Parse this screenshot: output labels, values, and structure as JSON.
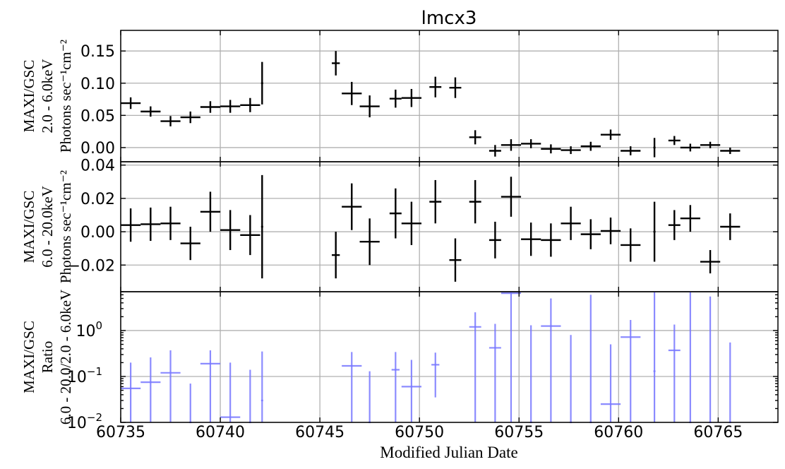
{
  "chart_data": {
    "title": "lmcx3",
    "xlabel": "Modified Julian Date",
    "xlim": [
      60735,
      60768
    ],
    "xticks": [
      60735,
      60740,
      60745,
      60750,
      60755,
      60760,
      60765
    ],
    "panels": [
      {
        "type": "scatter",
        "id": "soft",
        "ylabel_lines": [
          "MAXI/GSC",
          "2.0 - 6.0keV",
          "Photons sec⁻¹cm⁻²"
        ],
        "ylim": [
          -0.022,
          0.182
        ],
        "yscale": "linear",
        "yticks": [
          0.0,
          0.05,
          0.1,
          0.15
        ],
        "ytick_labels": [
          "0.00",
          "0.05",
          "0.10",
          "0.15"
        ],
        "color": "#000000",
        "points": [
          {
            "x": 60735.5,
            "y": 0.069,
            "yerr": 0.009
          },
          {
            "x": 60736.5,
            "y": 0.056,
            "yerr": 0.008
          },
          {
            "x": 60737.5,
            "y": 0.041,
            "yerr": 0.008
          },
          {
            "x": 60738.5,
            "y": 0.047,
            "yerr": 0.009
          },
          {
            "x": 60739.5,
            "y": 0.063,
            "yerr": 0.009
          },
          {
            "x": 60740.5,
            "y": 0.064,
            "yerr": 0.01
          },
          {
            "x": 60741.5,
            "y": 0.066,
            "yerr": 0.011
          },
          {
            "x": 60742.1,
            "y": 0.1,
            "yerr": 0.033,
            "xerr": 0.0
          },
          {
            "x": 60745.8,
            "y": 0.131,
            "yerr": 0.019,
            "xerr": 0.2
          },
          {
            "x": 60746.6,
            "y": 0.084,
            "yerr": 0.018
          },
          {
            "x": 60747.5,
            "y": 0.064,
            "yerr": 0.017
          },
          {
            "x": 60748.8,
            "y": 0.076,
            "yerr": 0.014,
            "xerr": 0.3
          },
          {
            "x": 60749.6,
            "y": 0.077,
            "yerr": 0.014
          },
          {
            "x": 60750.8,
            "y": 0.094,
            "yerr": 0.016,
            "xerr": 0.3
          },
          {
            "x": 60751.8,
            "y": 0.093,
            "yerr": 0.016,
            "xerr": 0.3
          },
          {
            "x": 60752.8,
            "y": 0.016,
            "yerr": 0.011,
            "xerr": 0.3
          },
          {
            "x": 60753.8,
            "y": -0.005,
            "yerr": 0.009,
            "xerr": 0.3
          },
          {
            "x": 60754.6,
            "y": 0.004,
            "yerr": 0.009
          },
          {
            "x": 60755.6,
            "y": 0.006,
            "yerr": 0.007
          },
          {
            "x": 60756.6,
            "y": -0.002,
            "yerr": 0.007
          },
          {
            "x": 60757.6,
            "y": -0.004,
            "yerr": 0.006
          },
          {
            "x": 60758.6,
            "y": 0.002,
            "yerr": 0.007
          },
          {
            "x": 60759.6,
            "y": 0.02,
            "yerr": 0.008
          },
          {
            "x": 60760.6,
            "y": -0.005,
            "yerr": 0.007
          },
          {
            "x": 60761.8,
            "y": 0.0,
            "yerr": 0.015,
            "xerr": 0.0
          },
          {
            "x": 60762.8,
            "y": 0.011,
            "yerr": 0.007,
            "xerr": 0.3
          },
          {
            "x": 60763.6,
            "y": 0.0,
            "yerr": 0.006
          },
          {
            "x": 60764.6,
            "y": 0.004,
            "yerr": 0.005
          },
          {
            "x": 60765.6,
            "y": -0.005,
            "yerr": 0.005
          }
        ]
      },
      {
        "type": "scatter",
        "id": "hard",
        "ylabel_lines": [
          "MAXI/GSC",
          "6.0 - 20.0keV",
          "Photons sec⁻¹cm⁻²"
        ],
        "ylim": [
          -0.036,
          0.042
        ],
        "yscale": "linear",
        "yticks": [
          -0.02,
          0.0,
          0.02,
          0.04
        ],
        "ytick_labels": [
          "−0.02",
          "0.00",
          "0.02",
          "0.04"
        ],
        "color": "#000000",
        "points": [
          {
            "x": 60735.5,
            "y": 0.004,
            "yerr": 0.01
          },
          {
            "x": 60736.5,
            "y": 0.0045,
            "yerr": 0.01
          },
          {
            "x": 60737.5,
            "y": 0.005,
            "yerr": 0.01
          },
          {
            "x": 60738.5,
            "y": -0.007,
            "yerr": 0.01
          },
          {
            "x": 60739.5,
            "y": 0.012,
            "yerr": 0.012
          },
          {
            "x": 60740.5,
            "y": 0.001,
            "yerr": 0.012
          },
          {
            "x": 60741.5,
            "y": -0.002,
            "yerr": 0.012
          },
          {
            "x": 60742.1,
            "y": 0.003,
            "yerr": 0.031,
            "xerr": 0.0
          },
          {
            "x": 60745.8,
            "y": -0.014,
            "yerr": 0.014,
            "xerr": 0.2
          },
          {
            "x": 60746.6,
            "y": 0.015,
            "yerr": 0.014
          },
          {
            "x": 60747.5,
            "y": -0.006,
            "yerr": 0.014
          },
          {
            "x": 60748.8,
            "y": 0.011,
            "yerr": 0.015,
            "xerr": 0.3
          },
          {
            "x": 60749.6,
            "y": 0.005,
            "yerr": 0.013
          },
          {
            "x": 60750.8,
            "y": 0.018,
            "yerr": 0.013,
            "xerr": 0.3
          },
          {
            "x": 60751.8,
            "y": -0.017,
            "yerr": 0.013,
            "xerr": 0.3
          },
          {
            "x": 60752.8,
            "y": 0.018,
            "yerr": 0.013,
            "xerr": 0.3
          },
          {
            "x": 60753.8,
            "y": -0.005,
            "yerr": 0.011,
            "xerr": 0.3
          },
          {
            "x": 60754.6,
            "y": 0.021,
            "yerr": 0.012
          },
          {
            "x": 60755.6,
            "y": -0.0045,
            "yerr": 0.01
          },
          {
            "x": 60756.6,
            "y": -0.005,
            "yerr": 0.01
          },
          {
            "x": 60757.6,
            "y": 0.005,
            "yerr": 0.01
          },
          {
            "x": 60758.6,
            "y": -0.0015,
            "yerr": 0.009
          },
          {
            "x": 60759.6,
            "y": 0.0005,
            "yerr": 0.008
          },
          {
            "x": 60760.6,
            "y": -0.008,
            "yerr": 0.01
          },
          {
            "x": 60761.8,
            "y": 0.0,
            "yerr": 0.018,
            "xerr": 0.0
          },
          {
            "x": 60762.8,
            "y": 0.004,
            "yerr": 0.009,
            "xerr": 0.3
          },
          {
            "x": 60763.6,
            "y": 0.008,
            "yerr": 0.008
          },
          {
            "x": 60764.6,
            "y": -0.018,
            "yerr": 0.007
          },
          {
            "x": 60765.6,
            "y": 0.003,
            "yerr": 0.008
          }
        ]
      },
      {
        "type": "scatter",
        "id": "ratio",
        "ylabel_lines": [
          "MAXI/GSC",
          "Ratio",
          "6.0 - 20.0/2.0 - 6.0keV"
        ],
        "ylim": [
          0.01,
          7
        ],
        "yscale": "log",
        "yticks": [
          0.01,
          0.1,
          1.0
        ],
        "ytick_labels": [
          "10",
          "10",
          "10"
        ],
        "ytick_exponents": [
          "−2",
          "−1",
          "0"
        ],
        "color": "#7777ff",
        "points": [
          {
            "x": 60735.5,
            "y": 0.055,
            "ylo": 0.01,
            "yhi": 0.2
          },
          {
            "x": 60736.5,
            "y": 0.075,
            "ylo": 0.01,
            "yhi": 0.26
          },
          {
            "x": 60737.5,
            "y": 0.12,
            "ylo": 0.01,
            "yhi": 0.37
          },
          {
            "x": 60738.5,
            "y": 0.01,
            "ylo": 0.01,
            "yhi": 0.07,
            "xerr": 0.0
          },
          {
            "x": 60739.5,
            "y": 0.19,
            "ylo": 0.01,
            "yhi": 0.37
          },
          {
            "x": 60740.5,
            "y": 0.013,
            "ylo": 0.01,
            "yhi": 0.2
          },
          {
            "x": 60741.5,
            "y": 0.01,
            "ylo": 0.01,
            "yhi": 0.14,
            "xerr": 0.0
          },
          {
            "x": 60742.1,
            "y": 0.03,
            "ylo": 0.01,
            "yhi": 0.35,
            "xerr": 0.0
          },
          {
            "x": 60746.6,
            "y": 0.17,
            "ylo": 0.01,
            "yhi": 0.34
          },
          {
            "x": 60747.5,
            "y": 0.01,
            "ylo": 0.01,
            "yhi": 0.13,
            "xerr": 0.0
          },
          {
            "x": 60748.8,
            "y": 0.14,
            "ylo": 0.01,
            "yhi": 0.34,
            "xerr": 0.2
          },
          {
            "x": 60749.6,
            "y": 0.06,
            "ylo": 0.01,
            "yhi": 0.23
          },
          {
            "x": 60750.8,
            "y": 0.18,
            "ylo": 0.035,
            "yhi": 0.33,
            "xerr": 0.2
          },
          {
            "x": 60752.8,
            "y": 1.2,
            "ylo": 0.01,
            "yhi": 2.5,
            "xerr": 0.3
          },
          {
            "x": 60753.8,
            "y": 0.42,
            "ylo": 0.01,
            "yhi": 1.4,
            "xerr": 0.3
          },
          {
            "x": 60754.6,
            "y": 6.5,
            "ylo": 0.01,
            "yhi": 7
          },
          {
            "x": 60755.6,
            "y": 0.01,
            "ylo": 0.01,
            "yhi": 1.3,
            "xerr": 0.0
          },
          {
            "x": 60756.6,
            "y": 1.25,
            "ylo": 0.01,
            "yhi": 5.0
          },
          {
            "x": 60757.6,
            "y": 0.01,
            "ylo": 0.01,
            "yhi": 0.8,
            "xerr": 0.0
          },
          {
            "x": 60758.6,
            "y": 0.01,
            "ylo": 0.01,
            "yhi": 6.0,
            "xerr": 0.0
          },
          {
            "x": 60759.6,
            "y": 0.025,
            "ylo": 0.01,
            "yhi": 0.5
          },
          {
            "x": 60760.6,
            "y": 0.72,
            "ylo": 0.01,
            "yhi": 1.7
          },
          {
            "x": 60761.8,
            "y": 0.13,
            "ylo": 0.01,
            "yhi": 7,
            "xerr": 0.0
          },
          {
            "x": 60762.8,
            "y": 0.37,
            "ylo": 0.01,
            "yhi": 1.35,
            "xerr": 0.3
          },
          {
            "x": 60763.6,
            "y": 0.01,
            "ylo": 0.01,
            "yhi": 7,
            "xerr": 0.0
          },
          {
            "x": 60764.6,
            "y": 0.01,
            "ylo": 0.01,
            "yhi": 5.5,
            "xerr": 0.0
          },
          {
            "x": 60765.6,
            "y": 0.01,
            "ylo": 0.01,
            "yhi": 0.55,
            "xerr": 0.0
          }
        ]
      }
    ],
    "grid": true
  }
}
